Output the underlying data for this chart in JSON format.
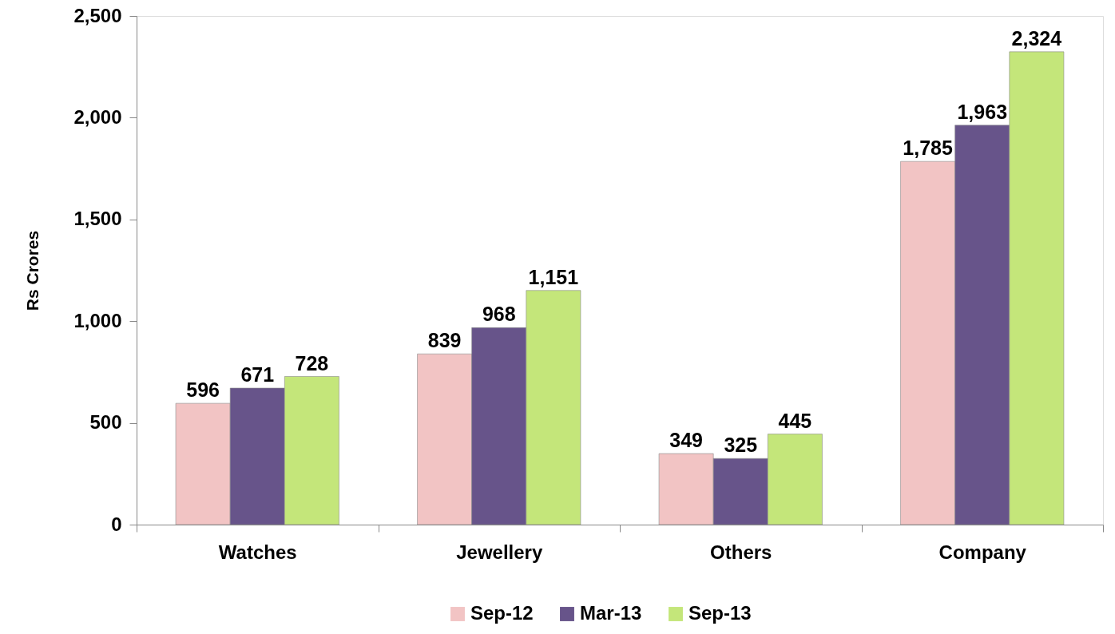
{
  "chart_data": {
    "type": "bar",
    "ylabel": "Rs Crores",
    "categories": [
      "Watches",
      "Jewellery",
      "Others",
      "Company"
    ],
    "series": [
      {
        "name": "Sep-12",
        "color": "#f2c4c4",
        "values": [
          596,
          839,
          349,
          1785
        ],
        "value_labels": [
          "596",
          "839",
          "349",
          "1,785"
        ]
      },
      {
        "name": "Mar-13",
        "color": "#67548a",
        "values": [
          671,
          968,
          325,
          1963
        ],
        "value_labels": [
          "671",
          "968",
          "325",
          "1,963"
        ]
      },
      {
        "name": "Sep-13",
        "color": "#c4e67a",
        "values": [
          728,
          1151,
          445,
          2324
        ],
        "value_labels": [
          "728",
          "1,151",
          "445",
          "2,324"
        ]
      }
    ],
    "ylim": [
      0,
      2500
    ],
    "yticks": [
      0,
      500,
      {
        "value": 1000,
        "label": "1,000"
      },
      {
        "value": 1500,
        "label": "1,500"
      },
      {
        "value": 2000,
        "label": "2,000"
      },
      {
        "value": 2500,
        "label": "2,500"
      }
    ],
    "legend": "bottom"
  }
}
